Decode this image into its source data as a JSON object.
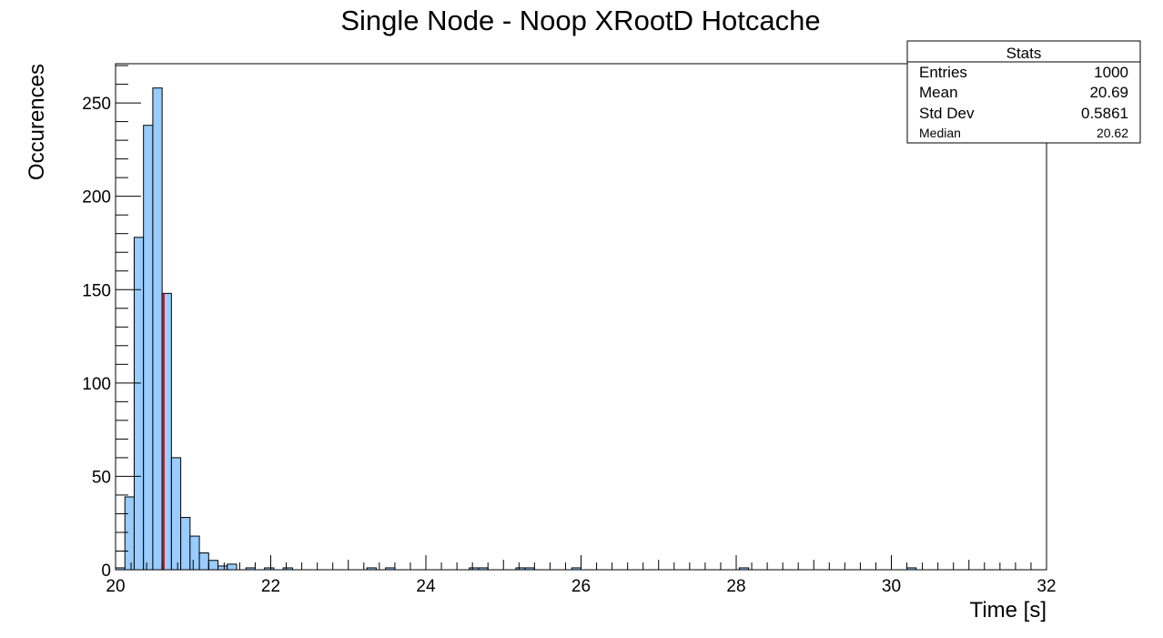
{
  "chart_data": {
    "type": "bar",
    "title": "Single Node - Noop XRootD Hotcache",
    "xlabel": "Time [s]",
    "ylabel": "Occurences",
    "xlim": [
      20,
      32
    ],
    "ylim": [
      0,
      271
    ],
    "bin_width": 0.12,
    "x_ticks": [
      "20",
      "22",
      "24",
      "26",
      "28",
      "30",
      "32"
    ],
    "y_ticks": [
      "0",
      "50",
      "100",
      "150",
      "200",
      "250"
    ],
    "bar_color": "#99ccff",
    "series": [
      {
        "values": [
          1,
          39,
          178,
          238,
          258,
          148,
          60,
          28,
          18,
          9,
          5,
          2,
          3,
          0,
          1,
          0,
          1,
          0,
          1,
          0,
          0,
          0,
          0,
          0,
          0,
          0,
          0,
          1,
          0,
          1,
          0,
          0,
          0,
          0,
          0,
          0,
          0,
          0,
          1,
          1,
          0,
          0,
          0,
          1,
          1,
          0,
          0,
          0,
          0,
          1,
          0,
          0,
          0,
          0,
          0,
          0,
          0,
          0,
          0,
          0,
          0,
          0,
          0,
          0,
          0,
          0,
          0,
          1,
          0,
          0,
          0,
          0,
          0,
          0,
          0,
          0,
          0,
          0,
          0,
          0,
          0,
          0,
          0,
          0,
          0,
          1,
          0,
          0,
          0,
          0,
          0,
          0,
          0,
          0,
          0,
          0,
          0,
          0,
          0,
          0
        ]
      }
    ],
    "median_line": {
      "x": 20.62,
      "color": "#e00000"
    },
    "stats_box": {
      "header": "Stats",
      "rows": [
        {
          "label": "Entries",
          "value": "1000",
          "color": "#000000"
        },
        {
          "label": "Mean",
          "value": "20.69",
          "color": "#000000"
        },
        {
          "label": "Std Dev",
          "value": "0.5861",
          "color": "#000000"
        },
        {
          "label": "Median",
          "value": "20.62",
          "color": "#e00000"
        }
      ]
    },
    "grid": false,
    "legend": "top-right"
  }
}
